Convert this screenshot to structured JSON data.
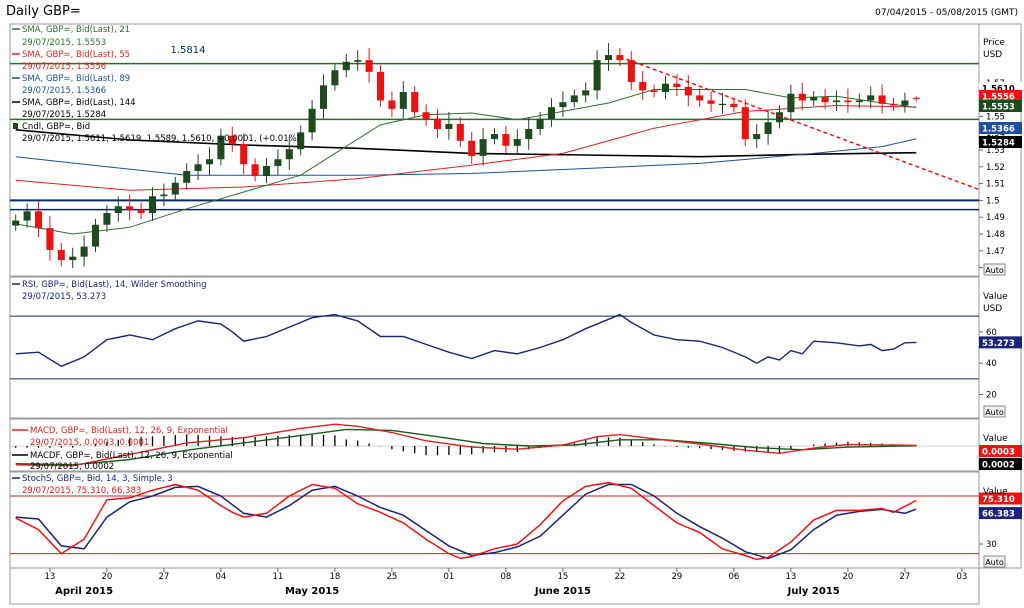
{
  "header": {
    "title": "Daily GBP=",
    "date_range": "07/04/2015 - 05/08/2015 (GMT)"
  },
  "colors": {
    "bull": "#1f4a1f",
    "bear": "#ee1111",
    "sma21": "#2f6f2f",
    "sma55": "#dd2222",
    "sma89": "#1f4f9f",
    "sma144": "#000000",
    "rsi": "#1a237e",
    "macd": "#dd2222",
    "macd_signal": "#1e5a1e",
    "stoch_k": "#ee1111",
    "stoch_d": "#1a237e",
    "level": "#0a2a6a",
    "level_green": "#2e6b2e",
    "trend": "#ee1111",
    "ob_line": "#cc2222"
  },
  "axis_labels": {
    "price": "Price",
    "value": "Value",
    "unit": "USD",
    "auto": "Auto"
  },
  "legend": {
    "sma21_title": "SMA, GBP=, Bid(Last),  21",
    "sma21_value": "29/07/2015, 1.5553",
    "sma55_title": "SMA, GBP=, Bid(Last),  55",
    "sma55_value": "29/07/2015, 1.5556",
    "sma89_title": "SMA, GBP=, Bid(Last),  89",
    "sma89_value": "29/07/2015, 1.5366",
    "sma144_title": "SMA, GBP=, Bid(Last),  144",
    "sma144_value": "29/07/2015, 1.5284",
    "candle_title": "Cndl, GBP=, Bid",
    "candle_value": "29/07/2015, 1.5611, 1.5619, 1.5589, 1.5610, +0.0001, (+0.01%)",
    "rsi_title": "RSI, GBP=, Bid(Last),  14, Wilder Smoothing",
    "rsi_value": "29/07/2015, 53.273",
    "macd_title": "MACD, GBP=, Bid(Last),  12, 26, 9, Exponential",
    "macd_value": "29/07/2015, 0.0003, 0.0001",
    "macdf_title": "MACDF, GBP=, Bid(Last),  12, 26, 9, Exponential",
    "macdf_value": "29/07/2015, 0.0002",
    "stoch_title": "StochS, GBP=, Bid,  14, 3, Simple, 3",
    "stoch_value": "29/07/2015, 75.310, 66.383"
  },
  "chart_data": [
    {
      "type": "candlestick",
      "panel": "price",
      "title": "Daily GBP=",
      "ylabel": "Price USD",
      "ylim": [
        1.455,
        1.605
      ],
      "y_ticks": [
        "1.57",
        "1.56",
        "1.55",
        "1.54",
        "1.53",
        "1.52",
        "1.51",
        "1.5",
        "1.49",
        "1.48",
        "1.47",
        "1.46"
      ],
      "x_ticks": [
        {
          "i": 3,
          "label": "13"
        },
        {
          "i": 8,
          "label": "20"
        },
        {
          "i": 13,
          "label": "27"
        },
        {
          "i": 18,
          "label": "04"
        },
        {
          "i": 23,
          "label": "11"
        },
        {
          "i": 28,
          "label": "18"
        },
        {
          "i": 33,
          "label": "25"
        },
        {
          "i": 38,
          "label": "01"
        },
        {
          "i": 43,
          "label": "08"
        },
        {
          "i": 48,
          "label": "15"
        },
        {
          "i": 53,
          "label": "22"
        },
        {
          "i": 58,
          "label": "29"
        },
        {
          "i": 63,
          "label": "06"
        },
        {
          "i": 68,
          "label": "13"
        },
        {
          "i": 73,
          "label": "20"
        },
        {
          "i": 78,
          "label": "27"
        },
        {
          "i": 83,
          "label": "03"
        }
      ],
      "months": [
        {
          "i": 6,
          "label": "April 2015"
        },
        {
          "i": 26,
          "label": "May 2015"
        },
        {
          "i": 48,
          "label": "June 2015"
        },
        {
          "i": 70,
          "label": "July 2015"
        }
      ],
      "x_range": [
        -0.5,
        84.5
      ],
      "close": [
        1.488,
        1.4935,
        1.4835,
        1.4705,
        1.4645,
        1.4665,
        1.4725,
        1.4855,
        1.4925,
        1.4965,
        1.4945,
        1.4925,
        1.5025,
        1.5035,
        1.5105,
        1.5175,
        1.5215,
        1.5245,
        1.5385,
        1.5335,
        1.5215,
        1.5145,
        1.5205,
        1.5245,
        1.5305,
        1.5405,
        1.5545,
        1.5685,
        1.5775,
        1.5825,
        1.5835,
        1.5765,
        1.5595,
        1.5545,
        1.5645,
        1.5525,
        1.5485,
        1.5425,
        1.5455,
        1.5355,
        1.5265,
        1.5365,
        1.5395,
        1.5325,
        1.5365,
        1.5425,
        1.5485,
        1.5555,
        1.5585,
        1.5625,
        1.5655,
        1.5835,
        1.5865,
        1.5835,
        1.5705,
        1.5655,
        1.5645,
        1.5695,
        1.5675,
        1.5625,
        1.5595,
        1.5575,
        1.5575,
        1.5555,
        1.5365,
        1.5395,
        1.5465,
        1.5525,
        1.5635,
        1.5595,
        1.5615,
        1.5585,
        1.5595,
        1.5585,
        1.5595,
        1.5625,
        1.5575,
        1.5565,
        1.5595,
        1.561
      ],
      "ohlc": {
        "last_open": 1.5611,
        "last_high": 1.5619,
        "last_low": 1.5589,
        "last_close": 1.561
      },
      "series": [
        {
          "name": "SMA, GBP=, Bid(Last),  21",
          "last": 1.5553
        },
        {
          "name": "SMA, GBP=, Bid(Last),  55",
          "last": 1.5556
        },
        {
          "name": "SMA, GBP=, Bid(Last),  89",
          "last": 1.5366
        },
        {
          "name": "SMA, GBP=, Bid(Last),  144",
          "last": 1.5284
        }
      ],
      "sma21": [
        [
          0,
          1.486
        ],
        [
          5,
          1.48
        ],
        [
          10,
          1.484
        ],
        [
          15,
          1.495
        ],
        [
          20,
          1.505
        ],
        [
          25,
          1.515
        ],
        [
          28,
          1.528
        ],
        [
          32,
          1.545
        ],
        [
          36,
          1.551
        ],
        [
          40,
          1.552
        ],
        [
          44,
          1.548
        ],
        [
          48,
          1.553
        ],
        [
          52,
          1.558
        ],
        [
          56,
          1.566
        ],
        [
          60,
          1.566
        ],
        [
          64,
          1.566
        ],
        [
          68,
          1.561
        ],
        [
          72,
          1.562
        ],
        [
          76,
          1.558
        ],
        [
          79,
          1.5553
        ]
      ],
      "sma55": [
        [
          0,
          1.512
        ],
        [
          10,
          1.506
        ],
        [
          20,
          1.508
        ],
        [
          30,
          1.513
        ],
        [
          40,
          1.521
        ],
        [
          48,
          1.528
        ],
        [
          56,
          1.543
        ],
        [
          64,
          1.553
        ],
        [
          72,
          1.5565
        ],
        [
          79,
          1.5556
        ]
      ],
      "sma89": [
        [
          0,
          1.526
        ],
        [
          8,
          1.52
        ],
        [
          15,
          1.515
        ],
        [
          20,
          1.515
        ],
        [
          30,
          1.515
        ],
        [
          40,
          1.516
        ],
        [
          50,
          1.519
        ],
        [
          60,
          1.522
        ],
        [
          70,
          1.528
        ],
        [
          76,
          1.532
        ],
        [
          79,
          1.5366
        ]
      ],
      "sma144": [
        [
          0,
          1.542
        ],
        [
          10,
          1.536
        ],
        [
          20,
          1.533
        ],
        [
          30,
          1.531
        ],
        [
          40,
          1.528
        ],
        [
          50,
          1.527
        ],
        [
          60,
          1.526
        ],
        [
          70,
          1.5275
        ],
        [
          79,
          1.5284
        ]
      ],
      "levels": [
        {
          "value": 1.5814,
          "label": "1.5814"
        },
        {
          "value": 1.5482,
          "label": ""
        },
        {
          "value": 1.5,
          "label": "1.5"
        },
        {
          "value": 1.4945,
          "label": ""
        }
      ],
      "trendline": {
        "from": [
          53,
          1.5855
        ],
        "to": [
          84.5,
          1.5065
        ]
      },
      "last_labels": [
        "1.5610",
        "1.5556",
        "1.5553",
        "1.5366",
        "1.5284"
      ]
    },
    {
      "type": "line",
      "panel": "rsi",
      "title": "RSI, GBP=, Bid(Last),  14, Wilder Smoothing",
      "ylim": [
        5,
        95
      ],
      "y_ticks": [
        "60",
        "40",
        "20"
      ],
      "levels": [
        70,
        30
      ],
      "values": [
        [
          0,
          46
        ],
        [
          2,
          47
        ],
        [
          4,
          38
        ],
        [
          6,
          44
        ],
        [
          8,
          55
        ],
        [
          10,
          58
        ],
        [
          12,
          55
        ],
        [
          14,
          62
        ],
        [
          16,
          67
        ],
        [
          18,
          65
        ],
        [
          19,
          60
        ],
        [
          20,
          54
        ],
        [
          22,
          57
        ],
        [
          24,
          63
        ],
        [
          26,
          69
        ],
        [
          28,
          71
        ],
        [
          30,
          67
        ],
        [
          32,
          57
        ],
        [
          34,
          57
        ],
        [
          36,
          52
        ],
        [
          38,
          47
        ],
        [
          40,
          43
        ],
        [
          42,
          48
        ],
        [
          44,
          46
        ],
        [
          46,
          50
        ],
        [
          48,
          55
        ],
        [
          50,
          62
        ],
        [
          52,
          68
        ],
        [
          53,
          71
        ],
        [
          54,
          66
        ],
        [
          56,
          58
        ],
        [
          58,
          55
        ],
        [
          60,
          54
        ],
        [
          62,
          50
        ],
        [
          64,
          44
        ],
        [
          65,
          40
        ],
        [
          66,
          44
        ],
        [
          67,
          42
        ],
        [
          68,
          48
        ],
        [
          69,
          46
        ],
        [
          70,
          54
        ],
        [
          72,
          53
        ],
        [
          74,
          51
        ],
        [
          75,
          52
        ],
        [
          76,
          48
        ],
        [
          77,
          49
        ],
        [
          78,
          53
        ],
        [
          79,
          53.273
        ]
      ],
      "last": "53.273"
    },
    {
      "type": "line",
      "panel": "macd",
      "title": "MACD, GBP=, Bid(Last),  12, 26, 9, Exponential",
      "series": [
        {
          "name": "MACD",
          "last": "0.0003"
        },
        {
          "name": "MACDF",
          "last": "0.0002"
        }
      ],
      "macd": [
        [
          0,
          -0.009
        ],
        [
          5,
          -0.0095
        ],
        [
          10,
          -0.004
        ],
        [
          15,
          0.0015
        ],
        [
          20,
          0.004
        ],
        [
          25,
          0.0085
        ],
        [
          28,
          0.0105
        ],
        [
          30,
          0.0095
        ],
        [
          33,
          0.0065
        ],
        [
          36,
          0.0025
        ],
        [
          40,
          -0.0005
        ],
        [
          44,
          -0.0015
        ],
        [
          48,
          0.0005
        ],
        [
          51,
          0.0045
        ],
        [
          53,
          0.0055
        ],
        [
          56,
          0.0035
        ],
        [
          60,
          0.001
        ],
        [
          64,
          -0.002
        ],
        [
          67,
          -0.0035
        ],
        [
          70,
          -0.001
        ],
        [
          73,
          0.0008
        ],
        [
          79,
          0.0003
        ]
      ],
      "signal": [
        [
          0,
          -0.0085
        ],
        [
          5,
          -0.009
        ],
        [
          10,
          -0.0065
        ],
        [
          15,
          -0.002
        ],
        [
          20,
          0.0015
        ],
        [
          25,
          0.005
        ],
        [
          29,
          0.008
        ],
        [
          33,
          0.0075
        ],
        [
          37,
          0.0045
        ],
        [
          41,
          0.0012
        ],
        [
          45,
          0
        ],
        [
          49,
          0.0005
        ],
        [
          53,
          0.003
        ],
        [
          57,
          0.003
        ],
        [
          61,
          0.0012
        ],
        [
          65,
          -0.0008
        ],
        [
          69,
          -0.0018
        ],
        [
          73,
          -0.0005
        ],
        [
          79,
          0.0001
        ]
      ],
      "ylim": [
        -0.012,
        0.013
      ]
    },
    {
      "type": "line",
      "panel": "stochastic",
      "title": "StochS, GBP=, Bid,  14, 3, Simple, 3",
      "ylim": [
        5,
        105
      ],
      "y_ticks": [
        "60",
        "30"
      ],
      "levels": [
        80,
        20
      ],
      "series": [
        {
          "name": "%K",
          "last": "75.310"
        },
        {
          "name": "%D",
          "last": "66.383"
        }
      ],
      "k": [
        [
          0,
          57
        ],
        [
          2,
          45
        ],
        [
          4,
          20
        ],
        [
          6,
          35
        ],
        [
          8,
          76
        ],
        [
          10,
          78
        ],
        [
          12,
          86
        ],
        [
          14,
          92
        ],
        [
          16,
          86
        ],
        [
          18,
          70
        ],
        [
          19,
          63
        ],
        [
          20,
          58
        ],
        [
          22,
          62
        ],
        [
          24,
          80
        ],
        [
          26,
          92
        ],
        [
          28,
          88
        ],
        [
          30,
          72
        ],
        [
          32,
          63
        ],
        [
          34,
          52
        ],
        [
          36,
          35
        ],
        [
          38,
          20
        ],
        [
          39,
          15
        ],
        [
          40,
          17
        ],
        [
          42,
          25
        ],
        [
          44,
          30
        ],
        [
          46,
          50
        ],
        [
          48,
          75
        ],
        [
          50,
          90
        ],
        [
          52,
          94
        ],
        [
          54,
          88
        ],
        [
          56,
          70
        ],
        [
          58,
          52
        ],
        [
          60,
          42
        ],
        [
          62,
          25
        ],
        [
          64,
          18
        ],
        [
          65,
          14
        ],
        [
          66,
          16
        ],
        [
          68,
          32
        ],
        [
          70,
          55
        ],
        [
          72,
          65
        ],
        [
          74,
          65
        ],
        [
          76,
          67
        ],
        [
          77,
          63
        ],
        [
          79,
          75.31
        ]
      ],
      "d": [
        [
          0,
          58
        ],
        [
          2,
          56
        ],
        [
          4,
          28
        ],
        [
          6,
          25
        ],
        [
          8,
          58
        ],
        [
          10,
          74
        ],
        [
          12,
          80
        ],
        [
          14,
          89
        ],
        [
          16,
          90
        ],
        [
          18,
          80
        ],
        [
          20,
          62
        ],
        [
          22,
          58
        ],
        [
          24,
          70
        ],
        [
          26,
          86
        ],
        [
          28,
          90
        ],
        [
          30,
          80
        ],
        [
          32,
          68
        ],
        [
          34,
          60
        ],
        [
          36,
          44
        ],
        [
          38,
          28
        ],
        [
          40,
          18
        ],
        [
          42,
          21
        ],
        [
          44,
          27
        ],
        [
          46,
          38
        ],
        [
          48,
          60
        ],
        [
          50,
          82
        ],
        [
          52,
          92
        ],
        [
          54,
          92
        ],
        [
          56,
          80
        ],
        [
          58,
          62
        ],
        [
          60,
          48
        ],
        [
          62,
          36
        ],
        [
          64,
          22
        ],
        [
          66,
          15
        ],
        [
          68,
          24
        ],
        [
          70,
          45
        ],
        [
          72,
          60
        ],
        [
          74,
          64
        ],
        [
          76,
          66
        ],
        [
          78,
          62
        ],
        [
          79,
          66.383
        ]
      ]
    }
  ]
}
